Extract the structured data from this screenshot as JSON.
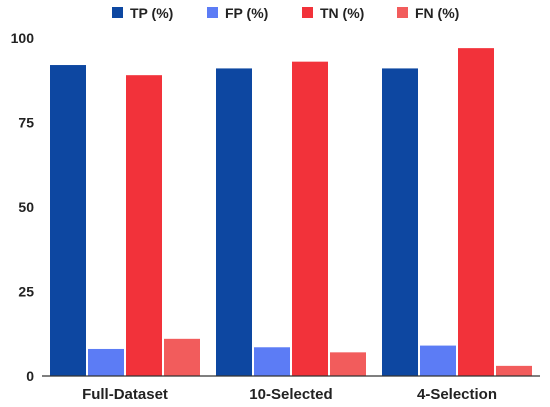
{
  "chart_data": {
    "type": "bar",
    "categories": [
      "Full-Dataset",
      "10-Selected",
      "4-Selection"
    ],
    "series": [
      {
        "name": "TP (%)",
        "color": "#0d47a1",
        "values": [
          92,
          91,
          91
        ]
      },
      {
        "name": "FP (%)",
        "color": "#5c7cf5",
        "values": [
          8,
          8.5,
          9
        ]
      },
      {
        "name": "TN (%)",
        "color": "#f2323a",
        "values": [
          89,
          93,
          97
        ]
      },
      {
        "name": "FN (%)",
        "color": "#f25c5c",
        "values": [
          11,
          7,
          3
        ]
      }
    ],
    "yticks": [
      "0",
      "25",
      "50",
      "75",
      "100"
    ],
    "ylim": [
      0,
      100
    ],
    "legend_position": "top",
    "grid": false
  }
}
